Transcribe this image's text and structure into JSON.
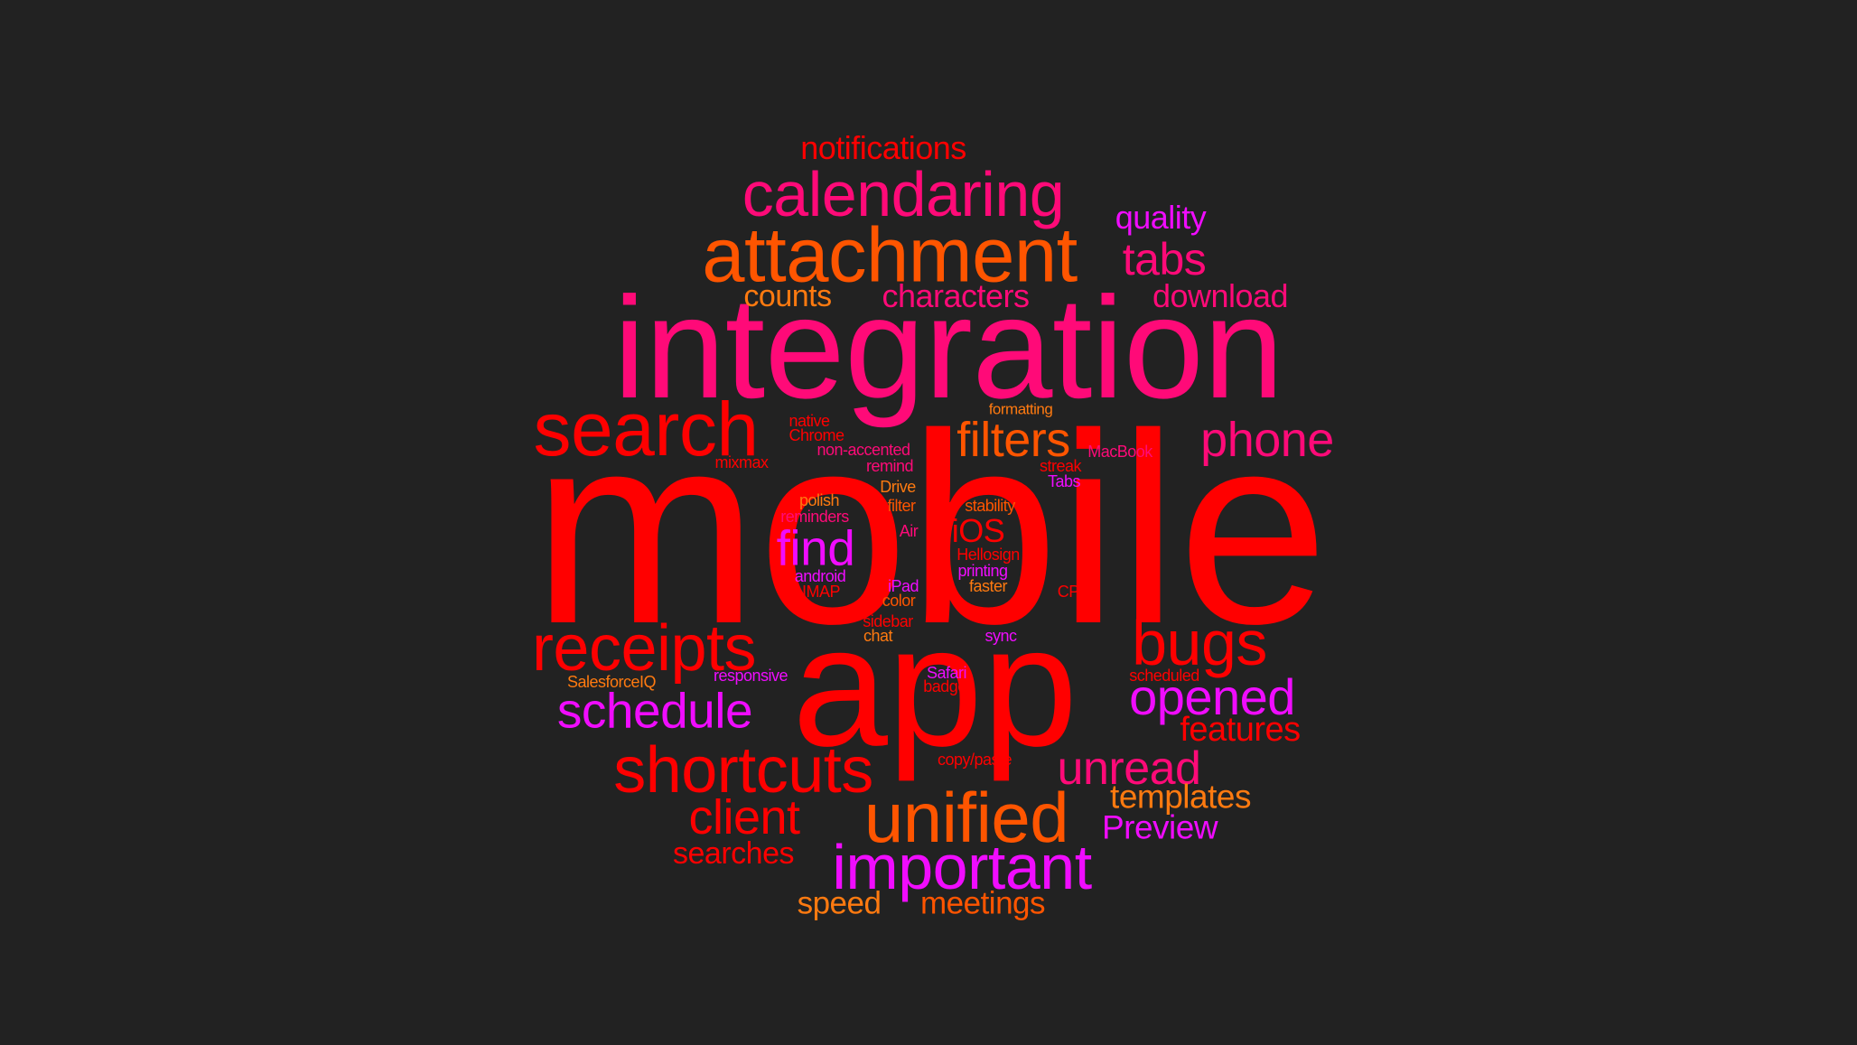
{
  "palette": {
    "background": "#222222",
    "red": "#ff0000",
    "pink": "#ff0a78",
    "magenta": "#f00cff",
    "orange": "#ff5500",
    "amber": "#ff7a10"
  },
  "words": [
    {
      "text": "mobile",
      "color": "#ff0000"
    },
    {
      "text": "app",
      "color": "#ff0000"
    },
    {
      "text": "integration",
      "color": "#ff0a78"
    },
    {
      "text": "attachment",
      "color": "#ff5500"
    },
    {
      "text": "calendaring",
      "color": "#ff0a78"
    },
    {
      "text": "search",
      "color": "#ff0000"
    },
    {
      "text": "unified",
      "color": "#ff5500"
    },
    {
      "text": "receipts",
      "color": "#ff0000"
    },
    {
      "text": "shortcuts",
      "color": "#ff0000"
    },
    {
      "text": "important",
      "color": "#f00cff"
    },
    {
      "text": "bugs",
      "color": "#ff0000"
    },
    {
      "text": "schedule",
      "color": "#f00cff"
    },
    {
      "text": "opened",
      "color": "#f00cff"
    },
    {
      "text": "phone",
      "color": "#ff0a78"
    },
    {
      "text": "filters",
      "color": "#ff5500"
    },
    {
      "text": "find",
      "color": "#f00cff"
    },
    {
      "text": "client",
      "color": "#ff0000"
    },
    {
      "text": "unread",
      "color": "#ff0a78"
    },
    {
      "text": "tabs",
      "color": "#ff0a78"
    },
    {
      "text": "notifications",
      "color": "#ff0000"
    },
    {
      "text": "quality",
      "color": "#f00cff"
    },
    {
      "text": "counts",
      "color": "#ff7a10"
    },
    {
      "text": "characters",
      "color": "#ff0a78"
    },
    {
      "text": "download",
      "color": "#ff0a78"
    },
    {
      "text": "features",
      "color": "#ff0000"
    },
    {
      "text": "templates",
      "color": "#ff7a10"
    },
    {
      "text": "Preview",
      "color": "#f00cff"
    },
    {
      "text": "searches",
      "color": "#ff0000"
    },
    {
      "text": "speed",
      "color": "#ff7a10"
    },
    {
      "text": "meetings",
      "color": "#ff5500"
    },
    {
      "text": "iOS",
      "color": "#ff0000"
    },
    {
      "text": "formatting",
      "color": "#ff7a10"
    },
    {
      "text": "native",
      "color": "#ff0000"
    },
    {
      "text": "Chrome",
      "color": "#ff0000"
    },
    {
      "text": "non-accented",
      "color": "#ff0a78"
    },
    {
      "text": "mixmax",
      "color": "#ff0000"
    },
    {
      "text": "remind",
      "color": "#ff0a78"
    },
    {
      "text": "MacBook",
      "color": "#ff0a78"
    },
    {
      "text": "streak",
      "color": "#ff0000"
    },
    {
      "text": "Tabs",
      "color": "#f00cff"
    },
    {
      "text": "Drive",
      "color": "#ff7a10"
    },
    {
      "text": "polish",
      "color": "#ff7a10"
    },
    {
      "text": "filter",
      "color": "#ff5500"
    },
    {
      "text": "stability",
      "color": "#ff5500"
    },
    {
      "text": "reminders",
      "color": "#ff0a78"
    },
    {
      "text": "Air",
      "color": "#ff0a78"
    },
    {
      "text": "Hellosign",
      "color": "#ff0000"
    },
    {
      "text": "printing",
      "color": "#f00cff"
    },
    {
      "text": "android",
      "color": "#f00cff"
    },
    {
      "text": "IMAP",
      "color": "#ff0000"
    },
    {
      "text": "iPad",
      "color": "#f00cff"
    },
    {
      "text": "faster",
      "color": "#ff7a10"
    },
    {
      "text": "CPU",
      "color": "#ff0000"
    },
    {
      "text": "color",
      "color": "#ff5500"
    },
    {
      "text": "sidebar",
      "color": "#ff0000"
    },
    {
      "text": "chat",
      "color": "#ff7a10"
    },
    {
      "text": "sync",
      "color": "#f00cff"
    },
    {
      "text": "responsive",
      "color": "#f00cff"
    },
    {
      "text": "Safari",
      "color": "#f00cff"
    },
    {
      "text": "badge",
      "color": "#ff0000"
    },
    {
      "text": "scheduled",
      "color": "#ff0000"
    },
    {
      "text": "SalesforceIQ",
      "color": "#ff7a10"
    },
    {
      "text": "copy/paste",
      "color": "#ff0000"
    }
  ]
}
